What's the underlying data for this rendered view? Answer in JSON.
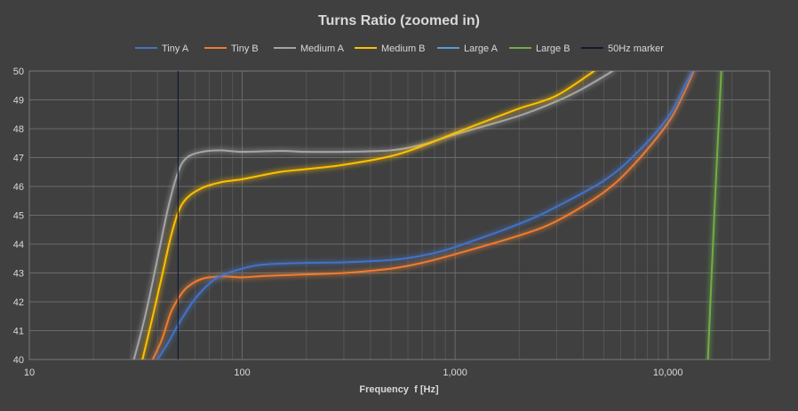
{
  "chart_data": {
    "type": "line",
    "title": "Turns Ratio (zoomed in)",
    "xlabel": "Frequency  f [Hz]",
    "ylabel": "",
    "x_scale": "log",
    "xlim": [
      10,
      30000
    ],
    "ylim": [
      40,
      50
    ],
    "x_ticks": [
      10,
      100,
      1000,
      10000
    ],
    "x_tick_labels": [
      "10",
      "100",
      "1,000",
      "10,000"
    ],
    "y_ticks": [
      40,
      41,
      42,
      43,
      44,
      45,
      46,
      47,
      48,
      49,
      50
    ],
    "y_tick_labels": [
      "40",
      "41",
      "42",
      "43",
      "44",
      "45",
      "46",
      "47",
      "48",
      "49",
      "50"
    ],
    "grid": true,
    "legend_position": "top",
    "series": [
      {
        "name": "Tiny A",
        "color": "#4472C4",
        "x": [
          40,
          45,
          50,
          60,
          75,
          100,
          130,
          200,
          300,
          500,
          700,
          1000,
          2000,
          3000,
          5000,
          7000,
          10000,
          12000,
          13000
        ],
        "y": [
          40,
          40.6,
          41.2,
          42.1,
          42.8,
          43.15,
          43.3,
          43.35,
          43.37,
          43.45,
          43.6,
          43.9,
          44.7,
          45.3,
          46.2,
          47.1,
          48.4,
          49.5,
          50
        ]
      },
      {
        "name": "Tiny B",
        "color": "#ED7D31",
        "x": [
          38,
          42,
          46,
          50,
          55,
          65,
          80,
          100,
          130,
          200,
          300,
          500,
          700,
          1000,
          2000,
          3000,
          5000,
          7000,
          10000,
          12000,
          13200
        ],
        "y": [
          40,
          40.7,
          41.6,
          42.1,
          42.5,
          42.8,
          42.88,
          42.85,
          42.9,
          42.95,
          43,
          43.15,
          43.35,
          43.65,
          44.3,
          44.8,
          45.8,
          46.8,
          48.2,
          49.3,
          50
        ]
      },
      {
        "name": "Medium A",
        "color": "#A5A5A5",
        "x": [
          31,
          35,
          40,
          45,
          50,
          55,
          65,
          80,
          100,
          150,
          200,
          300,
          500,
          700,
          1000,
          2000,
          3000,
          4000,
          5500
        ],
        "y": [
          40,
          41.5,
          43.5,
          45.3,
          46.5,
          47,
          47.2,
          47.25,
          47.2,
          47.23,
          47.2,
          47.2,
          47.25,
          47.45,
          47.8,
          48.45,
          48.95,
          49.4,
          50
        ]
      },
      {
        "name": "Medium B",
        "color": "#FFC000",
        "x": [
          34,
          38,
          42,
          46,
          50,
          55,
          65,
          80,
          100,
          150,
          200,
          300,
          500,
          700,
          1000,
          1500,
          2000,
          3000,
          4500
        ],
        "y": [
          40,
          41.5,
          42.9,
          44.2,
          45.1,
          45.6,
          45.95,
          46.15,
          46.25,
          46.5,
          46.6,
          46.75,
          47.05,
          47.4,
          47.85,
          48.35,
          48.7,
          49.15,
          50
        ]
      },
      {
        "name": "Large A",
        "color": "#5B9BD5",
        "x": [],
        "y": []
      },
      {
        "name": "Large B",
        "color": "#70AD47",
        "x": [
          15400,
          16500,
          17800
        ],
        "y": [
          40,
          45,
          50
        ]
      },
      {
        "name": "50Hz marker",
        "color": "#101a33",
        "x": [
          50,
          50
        ],
        "y": [
          40,
          50
        ]
      }
    ]
  }
}
